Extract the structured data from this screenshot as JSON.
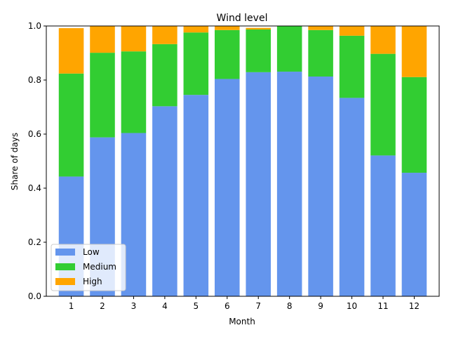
{
  "chart_data": {
    "type": "bar",
    "stacked": true,
    "title": "Wind level",
    "xlabel": "Month",
    "ylabel": "Share of days",
    "ylim": [
      0,
      1.0
    ],
    "yticks": [
      "0.0",
      "0.2",
      "0.4",
      "0.6",
      "0.8",
      "1.0"
    ],
    "categories": [
      "1",
      "2",
      "3",
      "4",
      "5",
      "6",
      "7",
      "8",
      "9",
      "10",
      "11",
      "12"
    ],
    "grid": false,
    "legend_position": "lower-left",
    "series": [
      {
        "name": "Low",
        "color": "#6495ed",
        "values": [
          0.443,
          0.588,
          0.604,
          0.703,
          0.745,
          0.804,
          0.829,
          0.831,
          0.813,
          0.734,
          0.521,
          0.457
        ]
      },
      {
        "name": "Medium",
        "color": "#32cd32",
        "values": [
          0.381,
          0.313,
          0.302,
          0.23,
          0.231,
          0.181,
          0.158,
          0.169,
          0.172,
          0.23,
          0.376,
          0.354
        ]
      },
      {
        "name": "High",
        "color": "#ffa500",
        "values": [
          0.168,
          0.099,
          0.094,
          0.067,
          0.024,
          0.015,
          0.006,
          0.0,
          0.015,
          0.036,
          0.103,
          0.189
        ]
      }
    ]
  }
}
